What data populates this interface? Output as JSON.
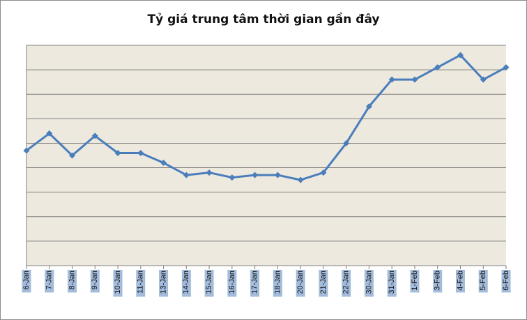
{
  "chart_data": {
    "type": "line",
    "title": "Tỷ giá trung tâm thời gian gần đây",
    "xlabel": "",
    "ylabel": "",
    "categories": [
      "6-Jan",
      "7-Jan",
      "8-Jan",
      "9-Jan",
      "10-Jan",
      "11-Jan",
      "13-Jan",
      "14-Jan",
      "15-Jan",
      "16-Jan",
      "17-Jan",
      "18-Jan",
      "20-Jan",
      "21-Jan",
      "22-Jan",
      "30-Jan",
      "31-Jan",
      "1-Feb",
      "3-Feb",
      "4-Feb",
      "5-Feb",
      "6-Feb"
    ],
    "series": [
      {
        "values": [
          4.7,
          5.4,
          4.5,
          5.3,
          4.6,
          4.6,
          4.2,
          3.7,
          3.8,
          3.6,
          3.7,
          3.7,
          3.5,
          3.8,
          5.0,
          6.5,
          7.6,
          7.6,
          8.1,
          8.6,
          7.6,
          8.1
        ],
        "color": "#4a7ebb"
      }
    ],
    "ylim": [
      0,
      9
    ],
    "y_ticks_visible": false,
    "grid": true,
    "plot_background": "#ede9df",
    "gridline_color": "#7f7f7f",
    "tick_label_highlight": "#a4bcdb",
    "legend": "none"
  }
}
